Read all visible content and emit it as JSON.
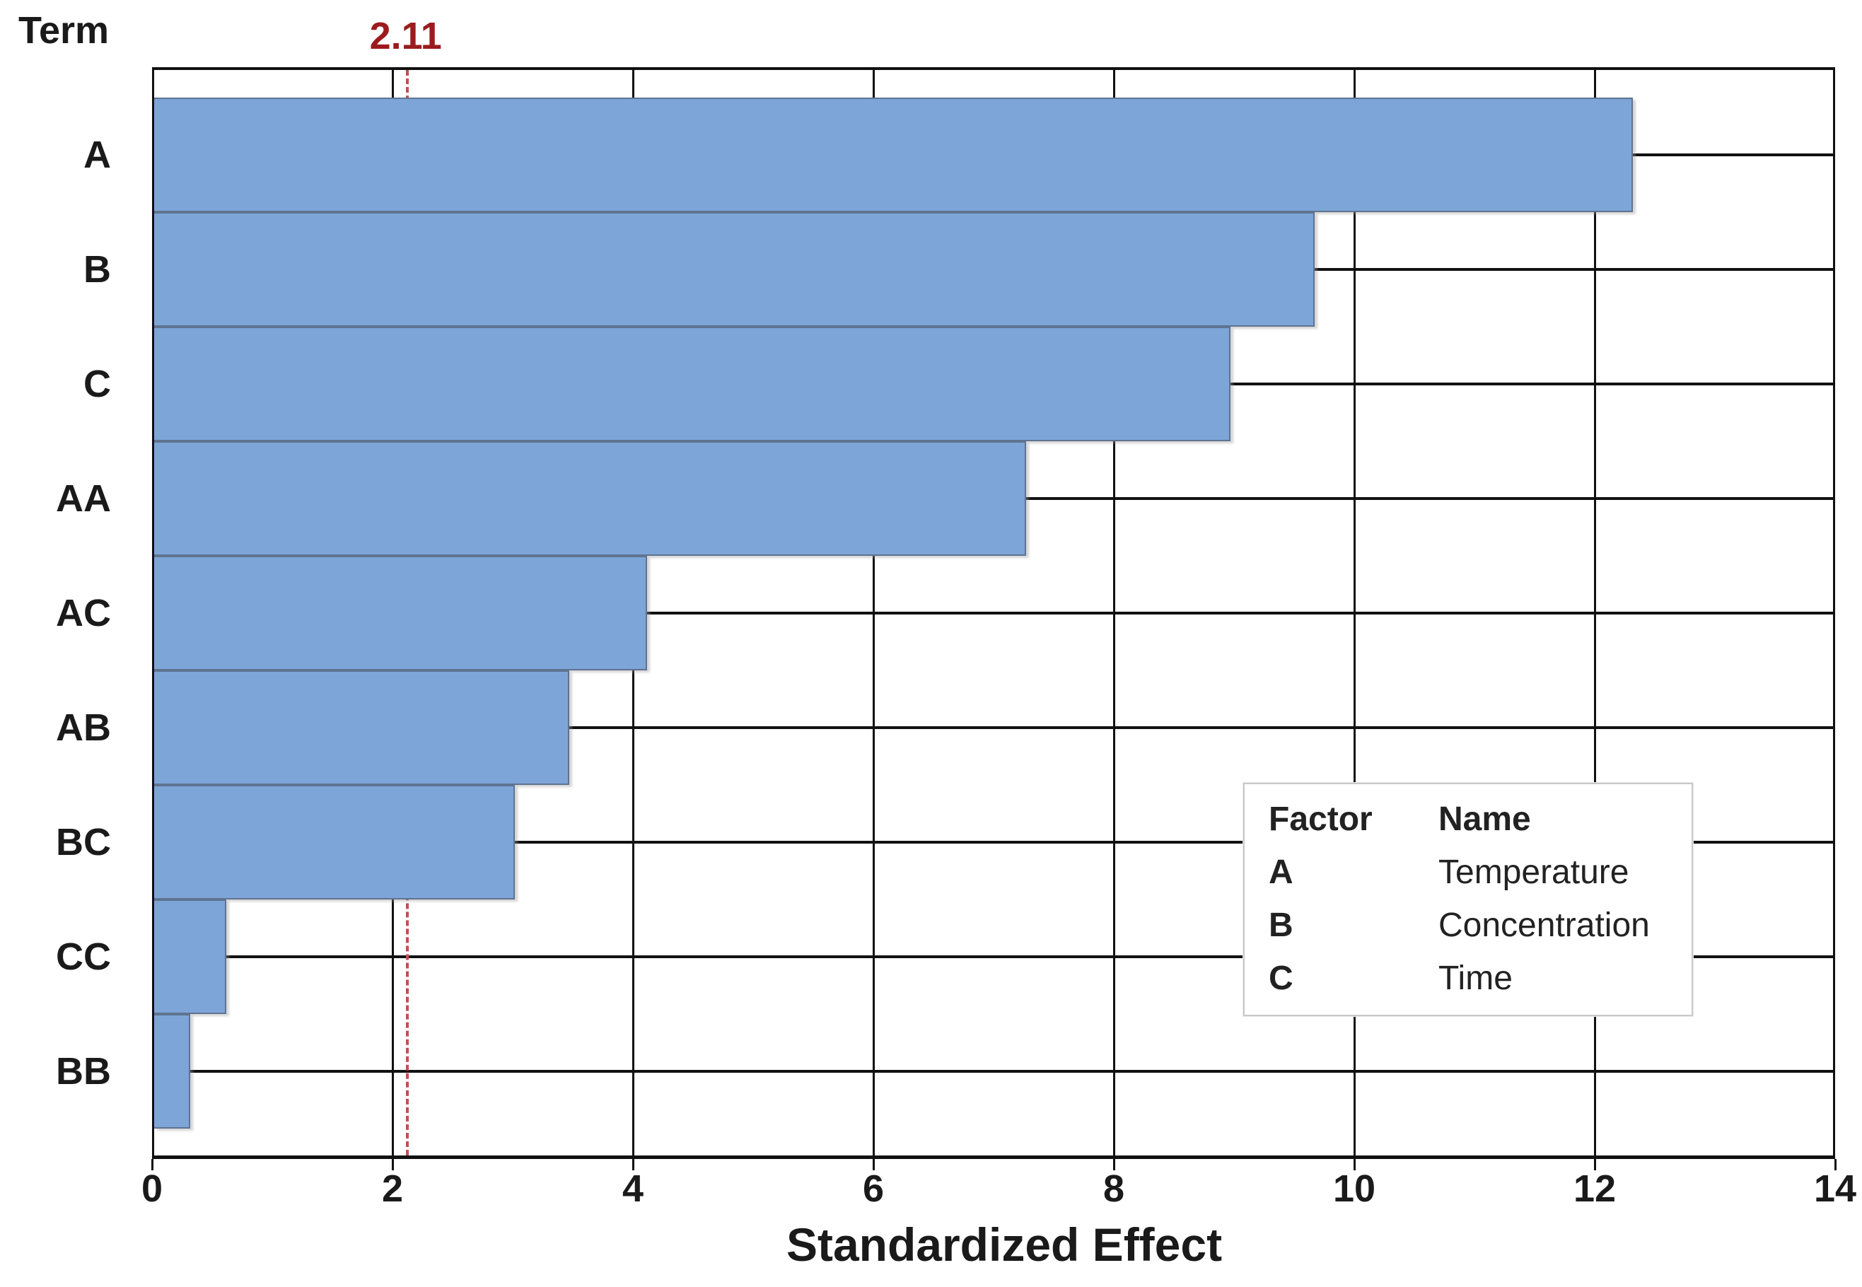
{
  "chart_data": {
    "type": "bar",
    "orientation": "horizontal",
    "ylabel_header": "Term",
    "xlabel": "Standardized Effect",
    "categories": [
      "A",
      "B",
      "C",
      "AA",
      "AC",
      "AB",
      "BC",
      "CC",
      "BB"
    ],
    "values": [
      12.3,
      9.65,
      8.95,
      7.25,
      4.1,
      3.45,
      3.0,
      0.6,
      0.3
    ],
    "xlim": [
      0,
      14
    ],
    "xticks": [
      0,
      2,
      4,
      6,
      8,
      10,
      12,
      14
    ],
    "grid": "both",
    "legend_position": "inside-right",
    "reference_line": {
      "value": 2.11,
      "label": "2.11"
    },
    "colors": {
      "bar_fill": "#7DA5D8",
      "bar_edge": "#5F7390",
      "grid_line": "#111111",
      "reference_line": "#C05050",
      "reference_label": "#9C1B1E",
      "text": "#1A1A1A"
    },
    "legend": {
      "col_headers": [
        "Factor",
        "Name"
      ],
      "rows": [
        {
          "factor": "A",
          "name": "Temperature"
        },
        {
          "factor": "B",
          "name": "Concentration"
        },
        {
          "factor": "C",
          "name": "Time"
        }
      ]
    }
  }
}
